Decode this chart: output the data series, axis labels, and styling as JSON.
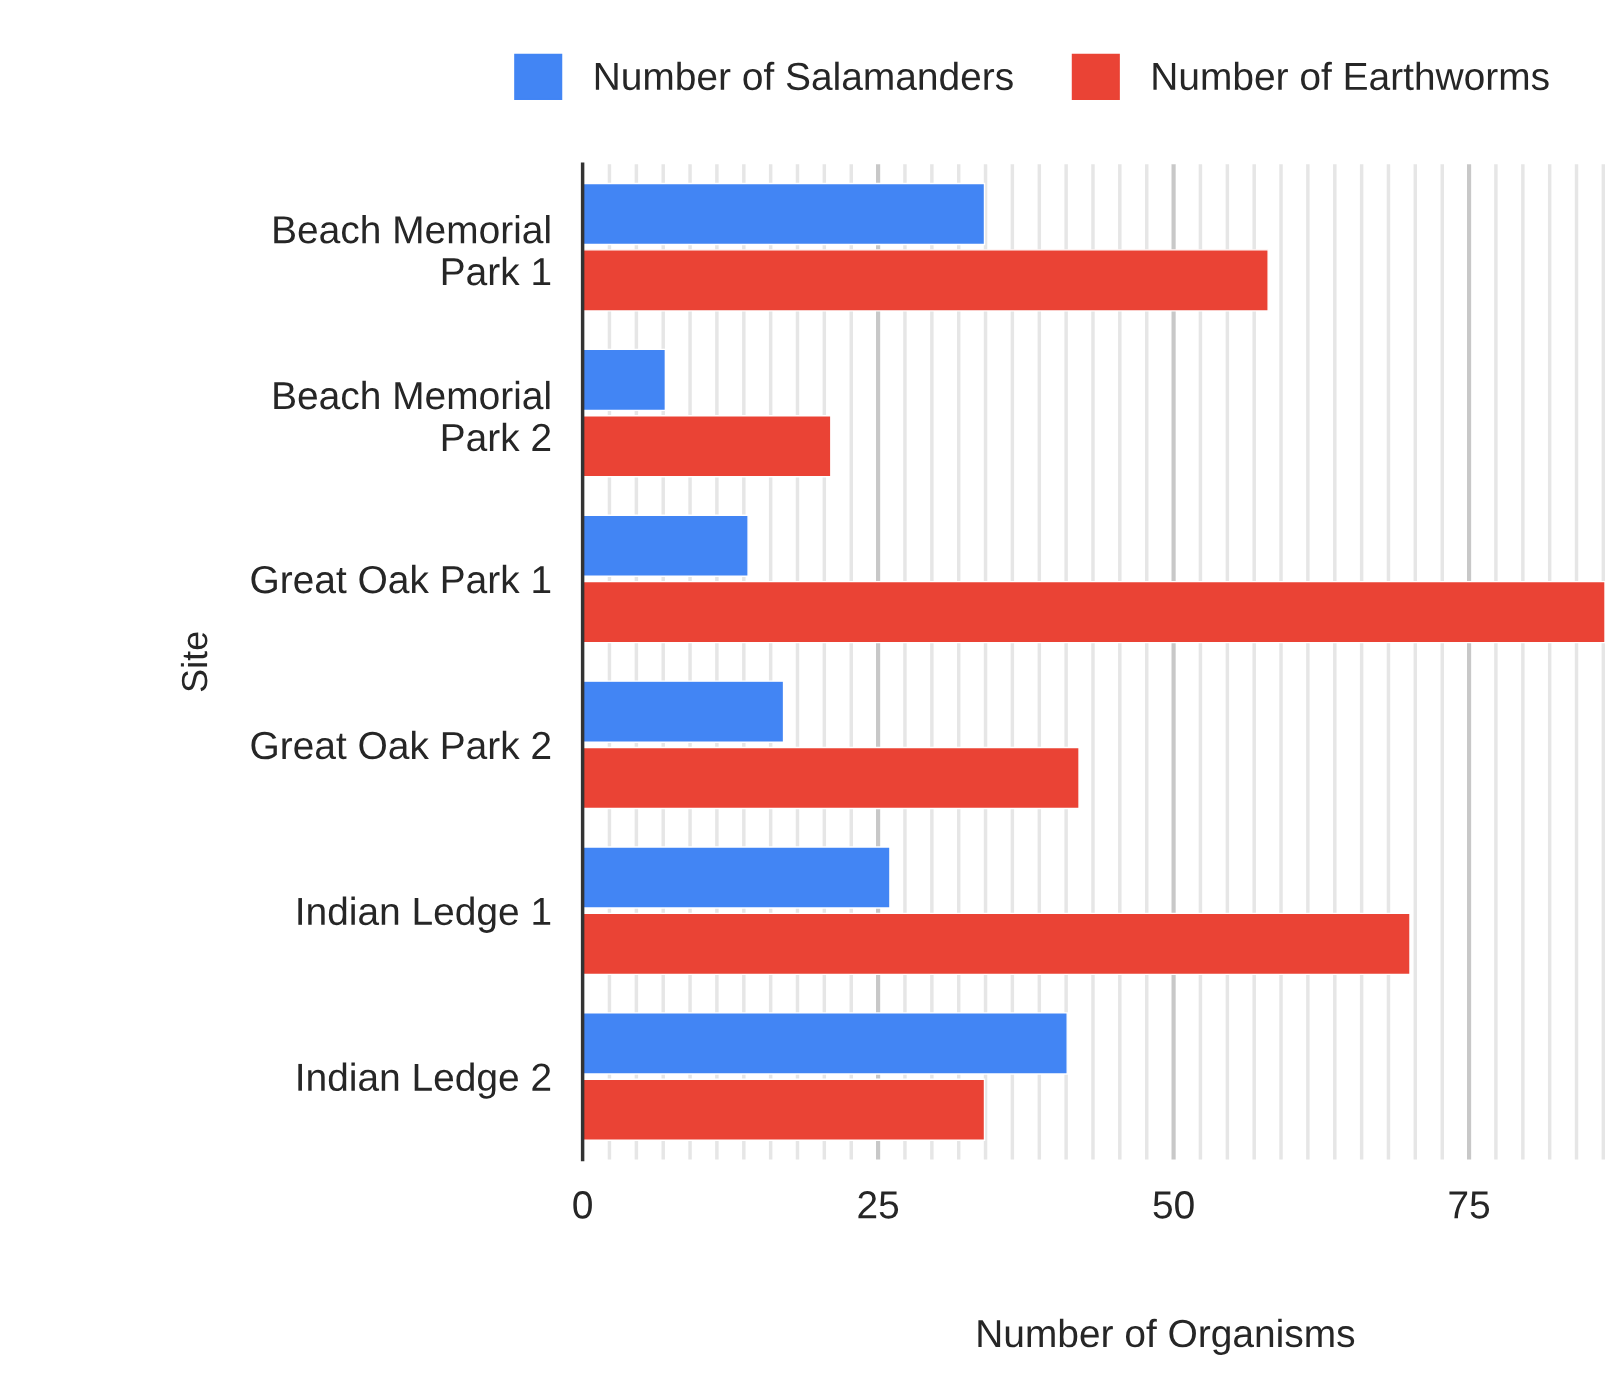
{
  "chart_data": {
    "type": "bar",
    "orientation": "horizontal",
    "xlabel": "Number of Organisms",
    "ylabel": "Site",
    "categories": [
      "Beach Memorial\nPark 1",
      "Beach Memorial\nPark 2",
      "Great Oak Park 1",
      "Great Oak Park 2",
      "Indian Ledge 1",
      "Indian Ledge 2"
    ],
    "series": [
      {
        "name": "Number of Salamanders",
        "color": "#4285f4",
        "values": [
          34,
          7,
          14,
          17,
          26,
          41
        ]
      },
      {
        "name": "Number of Earthworms",
        "color": "#ea4335",
        "values": [
          58,
          21,
          86.5,
          42,
          70,
          34
        ]
      }
    ],
    "xlim": [
      0,
      86.5
    ],
    "xticks": [
      0,
      {
        "value": 2.27,
        "label": null
      },
      {
        "value": 4.55,
        "label": null
      },
      {
        "value": 6.82,
        "label": null
      },
      {
        "value": 9.09,
        "label": null
      },
      {
        "value": 11.36,
        "label": null
      },
      {
        "value": 13.64,
        "label": null
      },
      {
        "value": 15.91,
        "label": null
      },
      {
        "value": 18.18,
        "label": null
      },
      {
        "value": 20.45,
        "label": null
      },
      {
        "value": 22.73,
        "label": null
      },
      25,
      {
        "value": 27.27,
        "label": null
      },
      {
        "value": 29.55,
        "label": null
      },
      {
        "value": 31.82,
        "label": null
      },
      {
        "value": 34.09,
        "label": null
      },
      {
        "value": 36.36,
        "label": null
      },
      {
        "value": 38.64,
        "label": null
      },
      {
        "value": 40.91,
        "label": null
      },
      {
        "value": 43.18,
        "label": null
      },
      {
        "value": 45.45,
        "label": null
      },
      {
        "value": 47.73,
        "label": null
      },
      50,
      {
        "value": 52.27,
        "label": null
      },
      {
        "value": 54.55,
        "label": null
      },
      {
        "value": 56.82,
        "label": null
      },
      {
        "value": 59.09,
        "label": null
      },
      {
        "value": 61.36,
        "label": null
      },
      {
        "value": 63.64,
        "label": null
      },
      {
        "value": 65.91,
        "label": null
      },
      {
        "value": 68.18,
        "label": null
      },
      {
        "value": 70.45,
        "label": null
      },
      {
        "value": 72.73,
        "label": null
      },
      75,
      {
        "value": 77.27,
        "label": null
      },
      {
        "value": 79.55,
        "label": null
      },
      {
        "value": 81.82,
        "label": null
      },
      {
        "value": 84.09,
        "label": null
      },
      {
        "value": 86.36,
        "label": null
      }
    ],
    "grid": "x",
    "legend": "top"
  }
}
